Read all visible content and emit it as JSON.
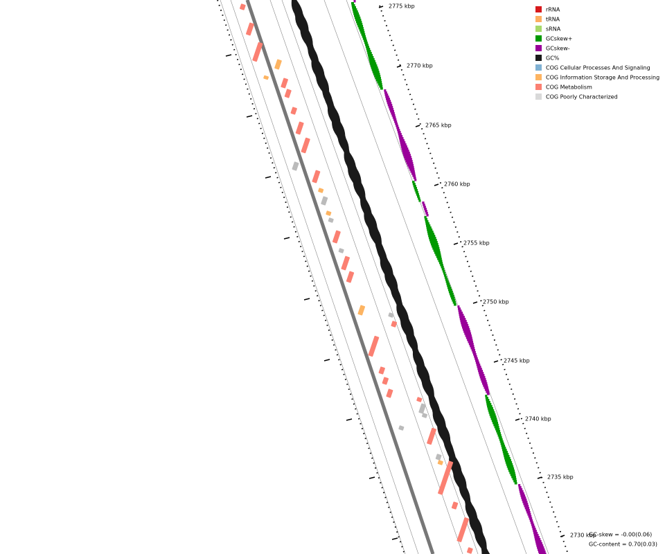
{
  "legend": [
    {
      "label": "rRNA",
      "color": "#d7191c"
    },
    {
      "label": "tRNA",
      "color": "#fdae61"
    },
    {
      "label": "sRNA",
      "color": "#a6d96a"
    },
    {
      "label": "GCskew+",
      "color": "#009900"
    },
    {
      "label": "GCskew-",
      "color": "#990099"
    },
    {
      "label": "GC%",
      "color": "#1a1a1a"
    },
    {
      "label": "COG Cellular Processes And Signaling",
      "color": "#80b1d3"
    },
    {
      "label": "COG Information Storage And Processing",
      "color": "#fdb462"
    },
    {
      "label": "COG Metabolism",
      "color": "#fb8072"
    },
    {
      "label": "COG Poorly Characterized",
      "color": "#d9d9d9"
    }
  ],
  "ruler_labels": [
    "2775 kbp",
    "2770 kbp",
    "2765 kbp",
    "2760 kbp",
    "2755 kbp",
    "2750 kbp",
    "2745 kbp",
    "2740 kbp",
    "2735 kbp",
    "2730 kbp"
  ],
  "stats": {
    "gc_skew": "GC-skew = -0.00(0.06)",
    "gc_content": "GC-content = 0.70(0.03)"
  }
}
